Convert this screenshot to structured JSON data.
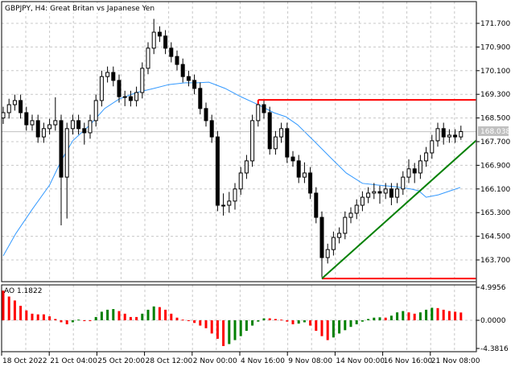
{
  "header": {
    "title": "GBPJPY, H4:  Great Britan vs Japanese Yen"
  },
  "colors": {
    "up_body": "#ffffff",
    "down_body": "#000000",
    "ma": "#3399ff",
    "level": "#ff0000",
    "trend": "#008000",
    "ao_up": "#008000",
    "ao_down": "#ff0000",
    "price_line": "#c0c0c0"
  },
  "chart_data": [
    {
      "type": "candlestick",
      "symbol": "GBPJPY",
      "timeframe": "H4",
      "ylim": [
        162.9,
        172.5
      ],
      "y_ticks": [
        "171.700",
        "170.900",
        "170.100",
        "169.300",
        "168.500",
        "167.700",
        "166.900",
        "166.100",
        "165.300",
        "164.500",
        "163.700"
      ],
      "x_ticks": [
        "18 Oct 2022",
        "21 Oct 04:00",
        "25 Oct 20:00",
        "28 Oct 12:00",
        "2 Nov 00:00",
        "4 Nov 16:00",
        "9 Nov 08:00",
        "14 Nov 00:00",
        "16 Nov 16:00",
        "21 Nov 08:00"
      ],
      "current_price": "168.038",
      "grid": true,
      "open": [
        168.5,
        168.68,
        168.95,
        169.09,
        168.68,
        168.27,
        168.41,
        167.86,
        168.14,
        168.27,
        168.41,
        166.5,
        168.14,
        168.41,
        168.14,
        168.0,
        168.41,
        169.09,
        169.9,
        170.04,
        169.77,
        169.22,
        169.22,
        169.09,
        169.36,
        170.18,
        170.86,
        171.4,
        171.27,
        170.86,
        170.58,
        170.31,
        169.9,
        169.77,
        169.5,
        168.82,
        168.41,
        167.86,
        165.55,
        165.55,
        165.69,
        166.1,
        166.64,
        167.05,
        168.41,
        168.95,
        168.68,
        167.46,
        167.86,
        168.14,
        167.18,
        167.05,
        166.5,
        166.64,
        165.96,
        165.14,
        163.78,
        164.05,
        164.46,
        164.6,
        165.14,
        165.28,
        165.55,
        165.82,
        165.96,
        166.01,
        165.96,
        166.1,
        165.82,
        166.1,
        166.5,
        166.78,
        166.64,
        167.05,
        167.32,
        167.73,
        168.14,
        167.86,
        167.92,
        167.86
      ],
      "high": [
        168.88,
        169.15,
        169.29,
        169.29,
        168.88,
        168.61,
        168.61,
        168.34,
        168.47,
        169.2,
        168.61,
        168.34,
        168.61,
        168.61,
        168.34,
        168.61,
        169.29,
        170.1,
        170.24,
        170.24,
        169.97,
        169.42,
        169.42,
        169.56,
        170.38,
        171.06,
        171.85,
        171.6,
        171.47,
        171.06,
        170.78,
        170.51,
        170.1,
        169.97,
        169.7,
        169.02,
        168.61,
        168.06,
        165.95,
        166.0,
        166.3,
        166.84,
        167.25,
        168.61,
        169.05,
        169.1,
        168.88,
        168.06,
        168.34,
        168.34,
        167.38,
        167.25,
        167.0,
        166.84,
        166.16,
        165.34,
        164.25,
        164.66,
        164.8,
        165.34,
        165.48,
        165.75,
        166.02,
        166.16,
        166.3,
        166.21,
        166.3,
        166.3,
        166.3,
        166.7,
        167.1,
        166.98,
        167.25,
        167.52,
        167.93,
        168.34,
        168.34,
        168.12,
        168.12,
        168.24
      ],
      "low": [
        168.3,
        168.48,
        168.75,
        168.48,
        168.07,
        168.07,
        167.66,
        167.66,
        167.94,
        168.07,
        164.87,
        165.1,
        167.94,
        167.94,
        167.6,
        167.8,
        168.21,
        168.89,
        169.7,
        169.57,
        169.02,
        168.9,
        168.89,
        168.89,
        169.16,
        169.98,
        170.66,
        171.07,
        170.66,
        170.38,
        170.11,
        169.7,
        169.57,
        169.3,
        168.62,
        168.21,
        167.66,
        165.35,
        165.2,
        165.3,
        165.4,
        165.9,
        166.44,
        166.85,
        168.21,
        168.48,
        167.26,
        167.26,
        167.66,
        166.98,
        166.85,
        166.3,
        166.3,
        165.76,
        164.94,
        163.12,
        163.58,
        163.85,
        164.26,
        164.4,
        164.94,
        165.08,
        165.35,
        165.62,
        165.76,
        165.6,
        165.76,
        165.55,
        165.62,
        165.9,
        166.3,
        166.3,
        166.44,
        166.85,
        167.12,
        167.53,
        167.6,
        167.66,
        167.66,
        167.76
      ],
      "close": [
        168.68,
        168.95,
        169.09,
        168.68,
        168.27,
        168.41,
        167.86,
        168.14,
        168.27,
        168.41,
        166.5,
        168.14,
        168.41,
        168.14,
        168.0,
        168.41,
        169.09,
        169.9,
        170.04,
        169.77,
        169.22,
        169.22,
        169.09,
        169.36,
        170.18,
        170.86,
        171.4,
        171.27,
        170.86,
        170.58,
        170.31,
        169.9,
        169.77,
        169.5,
        168.82,
        168.41,
        167.86,
        165.55,
        165.55,
        165.69,
        166.1,
        166.64,
        167.05,
        168.41,
        168.95,
        168.68,
        167.46,
        167.86,
        168.14,
        167.18,
        167.05,
        166.5,
        166.64,
        165.96,
        165.14,
        163.78,
        164.05,
        164.46,
        164.6,
        165.14,
        165.28,
        165.55,
        165.82,
        165.96,
        166.01,
        165.96,
        166.1,
        165.82,
        166.1,
        166.5,
        166.78,
        166.64,
        167.05,
        167.32,
        167.73,
        168.14,
        167.86,
        167.92,
        167.86,
        168.04
      ],
      "moving_average": [
        [
          0,
          163.84
        ],
        [
          2.2,
          164.6
        ],
        [
          5,
          165.41
        ],
        [
          8,
          166.23
        ],
        [
          10,
          167.05
        ],
        [
          12,
          167.73
        ],
        [
          15,
          168.27
        ],
        [
          17.5,
          168.82
        ],
        [
          20,
          169.14
        ],
        [
          23,
          169.36
        ],
        [
          26,
          169.5
        ],
        [
          28.6,
          169.63
        ],
        [
          31.4,
          169.69
        ],
        [
          33.5,
          169.69
        ],
        [
          35.5,
          169.71
        ],
        [
          38.3,
          169.5
        ],
        [
          41,
          169.22
        ],
        [
          44,
          168.95
        ],
        [
          46.7,
          168.68
        ],
        [
          48.8,
          168.54
        ],
        [
          50.8,
          168.27
        ],
        [
          53.6,
          167.73
        ],
        [
          56.4,
          167.18
        ],
        [
          59.2,
          166.64
        ],
        [
          62,
          166.29
        ],
        [
          64.7,
          166.23
        ],
        [
          67.5,
          166.18
        ],
        [
          70.3,
          166.1
        ],
        [
          71.7,
          166.04
        ],
        [
          73,
          165.82
        ],
        [
          75.1,
          165.9
        ],
        [
          77.2,
          166.04
        ],
        [
          78.9,
          166.15
        ]
      ],
      "levels": {
        "resistance": {
          "price": 169.11,
          "from_index": 44
        },
        "support": {
          "price": 163.07,
          "from_index": 55
        },
        "trendline": {
          "from": [
            55,
            163.07
          ],
          "to": [
            81.7,
            167.75
          ]
        }
      }
    },
    {
      "type": "bar",
      "indicator": "AO",
      "label": "AO",
      "current_value": "1.1822",
      "ylim": [
        -4.3816,
        4.9956
      ],
      "y_ticks": [
        "4.9956",
        "0.0000",
        "-4.3816"
      ],
      "values": [
        4.5,
        3.6,
        3.0,
        2.2,
        1.5,
        1.0,
        0.9,
        0.9,
        0.6,
        0.2,
        -0.3,
        -0.6,
        -0.3,
        0.1,
        0.0,
        -0.1,
        0.5,
        1.3,
        1.6,
        1.7,
        1.4,
        1.0,
        0.5,
        0.5,
        1.0,
        1.6,
        2.1,
        2.0,
        1.6,
        1.0,
        0.4,
        0.1,
        -0.1,
        -0.4,
        -0.8,
        -1.2,
        -2.0,
        -2.8,
        -3.9,
        -3.6,
        -3.0,
        -2.4,
        -1.6,
        -0.8,
        -0.2,
        0.3,
        0.3,
        0.2,
        0.1,
        -0.2,
        -0.6,
        -0.5,
        -0.3,
        -0.8,
        -1.6,
        -2.4,
        -3.0,
        -2.6,
        -2.0,
        -1.5,
        -1.0,
        -0.6,
        -0.2,
        0.2,
        0.4,
        0.45,
        0.4,
        0.7,
        1.2,
        1.4,
        1.2,
        1.0,
        1.2,
        1.6,
        1.9,
        1.85,
        1.6,
        1.4,
        1.3,
        1.1822
      ]
    }
  ]
}
